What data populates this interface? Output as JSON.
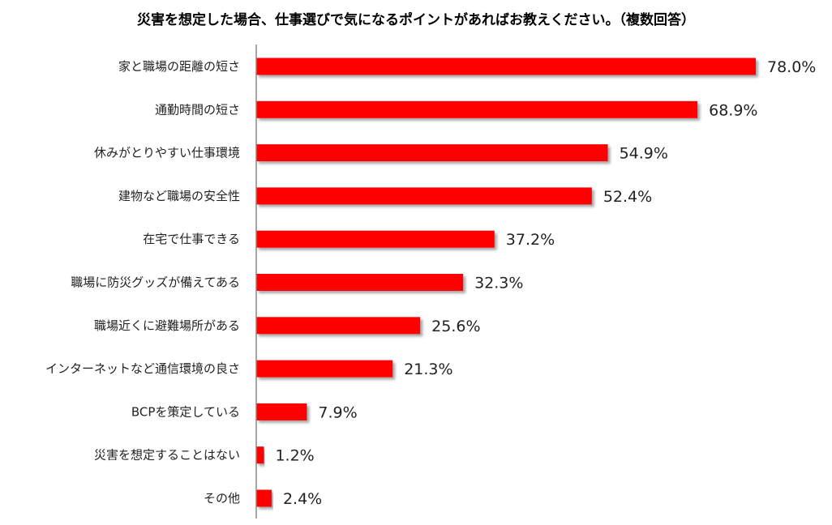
{
  "chart_data": {
    "type": "bar",
    "orientation": "horizontal",
    "title": "災害を想定した場合、仕事選びで気になるポイントがあればお教えください。（複数回答）",
    "categories": [
      "家と職場の距離の短さ",
      "通勤時間の短さ",
      "休みがとりやすい仕事環境",
      "建物など職場の安全性",
      "在宅で仕事できる",
      "職場に防災グッズが備えてある",
      "職場近くに避難場所がある",
      "インターネットなど通信環境の良さ",
      "BCPを策定している",
      "災害を想定することはない",
      "その他"
    ],
    "values": [
      78.0,
      68.9,
      54.9,
      52.4,
      37.2,
      32.3,
      25.6,
      21.3,
      7.9,
      1.2,
      2.4
    ],
    "value_labels": [
      "78.0%",
      "68.9%",
      "54.9%",
      "52.4%",
      "37.2%",
      "32.3%",
      "25.6%",
      "21.3%",
      "7.9%",
      "1.2%",
      "2.4%"
    ],
    "bar_color": "#ff0000",
    "xlim": [
      0,
      80
    ],
    "grid": false,
    "legend": "none"
  }
}
